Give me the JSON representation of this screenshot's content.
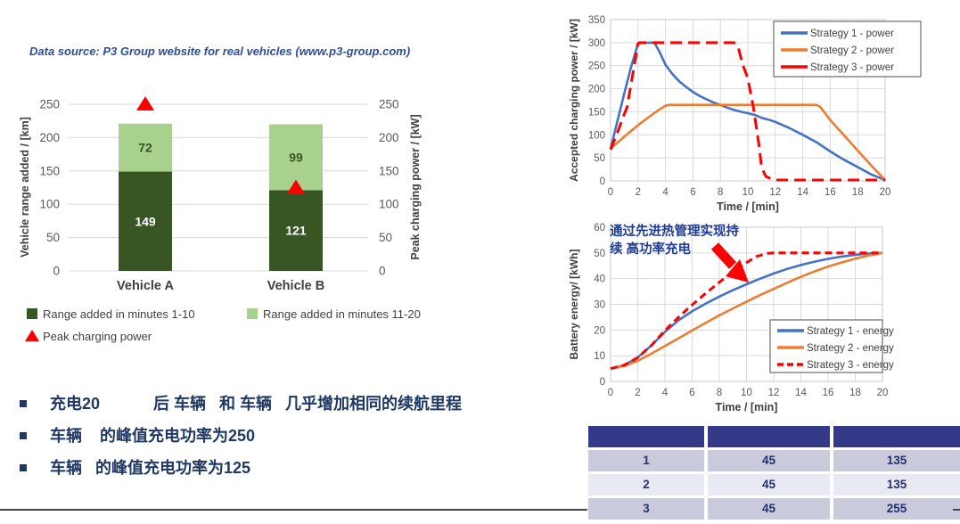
{
  "datasource_note": "Data source: P3 Group website for real vehicles (www.p3-group.com)",
  "bullets": {
    "items": [
      "充电20            后 车辆   和 车辆   几乎增加相同的续航里程",
      "车辆    的峰值充电功率为250",
      "车辆   的峰值充电功率为125"
    ]
  },
  "colors": {
    "dark_green": "#375623",
    "light_green": "#a9d18e",
    "blue_line": "#4472c4",
    "orange_line": "#ed7d31",
    "red_line": "#ff0000",
    "navy_text": "#1f3864",
    "axis_text": "#595959",
    "gridline": "#d9d9d9"
  },
  "chart_data": [
    {
      "type": "bar",
      "stacked": true,
      "categories": [
        "Vehicle A",
        "Vehicle B"
      ],
      "series": [
        {
          "name": "Range added in minutes 1-10",
          "color": "#375623",
          "values": [
            149,
            121
          ],
          "label_color": "#ffffff"
        },
        {
          "name": "Range added in minutes 11-20",
          "color": "#a9d18e",
          "values": [
            72,
            99
          ],
          "label_color": "#375623"
        }
      ],
      "markers": {
        "name": "Peak charging power",
        "color": "#ff0000",
        "values": [
          250,
          125
        ]
      },
      "ylabel_left": "Vehicle range added / [km]",
      "ylabel_right": "Peak charging power / [kW]",
      "ylim": [
        0,
        250
      ],
      "yticks": [
        0,
        50,
        100,
        150,
        200,
        250
      ]
    },
    {
      "type": "line",
      "xlabel": "Time / [min]",
      "ylabel": "Accepted charging power / [kW]",
      "xlim": [
        0,
        20
      ],
      "ylim": [
        0,
        350
      ],
      "xtick_step": 2,
      "ytick_step": 50,
      "legend_position": "top-right",
      "series": [
        {
          "name": "Strategy 1 - power",
          "color": "#4472c4",
          "dash": "solid",
          "x": [
            0,
            0.5,
            1,
            1.5,
            2,
            2.2,
            3.2,
            3.6,
            4,
            4.5,
            5,
            5.5,
            6,
            6.5,
            7,
            7.5,
            8,
            8.5,
            9,
            9.5,
            10,
            10.5,
            11,
            11.5,
            12,
            13,
            14,
            15,
            16,
            16.5,
            17,
            18,
            19,
            20
          ],
          "y": [
            70,
            130,
            190,
            248,
            298,
            300,
            300,
            278,
            252,
            232,
            216,
            204,
            193,
            184,
            177,
            170,
            165,
            159,
            154,
            150,
            147,
            143,
            137,
            133,
            128,
            115,
            100,
            84,
            64,
            55,
            46,
            30,
            14,
            2
          ]
        },
        {
          "name": "Strategy 2 - power",
          "color": "#ed7d31",
          "dash": "solid",
          "x": [
            0,
            1,
            2,
            2.5,
            3,
            3.5,
            4,
            4.3,
            15,
            15.3,
            16,
            17,
            18,
            19,
            20
          ],
          "y": [
            70,
            96,
            121,
            132,
            143,
            154,
            163,
            165,
            165,
            160,
            132,
            99,
            66,
            33,
            2
          ]
        },
        {
          "name": "Strategy 3 - power",
          "color": "#ff0000",
          "dash": "dashed",
          "x": [
            0,
            0.5,
            1,
            1.2,
            2,
            2.1,
            9,
            9.3,
            9.6,
            10,
            10.4,
            10.8,
            11,
            11.3,
            11.7,
            12,
            20
          ],
          "y": [
            68,
            105,
            145,
            160,
            298,
            300,
            300,
            290,
            255,
            222,
            160,
            80,
            30,
            10,
            4,
            2,
            2
          ]
        }
      ]
    },
    {
      "type": "line",
      "xlabel": "Time / [min]",
      "ylabel": "Battery energy/ [kWh]",
      "xlim": [
        0,
        20
      ],
      "ylim": [
        0,
        60
      ],
      "xtick_step": 2,
      "ytick_step": 10,
      "legend_position": "middle-right",
      "annotation_line1": "通过先进热管理实现持",
      "annotation_line2": "续 高功率充电",
      "series": [
        {
          "name": "Strategy 1 - energy",
          "color": "#4472c4",
          "dash": "solid",
          "x": [
            0,
            1,
            2,
            3,
            4,
            5,
            6,
            7,
            8,
            9,
            10,
            11,
            12,
            13,
            14,
            15,
            16,
            17,
            18,
            19,
            20
          ],
          "y": [
            5,
            6.3,
            9.3,
            14,
            19.3,
            23.8,
            27.3,
            30.3,
            33,
            35.5,
            37.8,
            40,
            42,
            43.8,
            45.3,
            46.6,
            47.7,
            48.6,
            49.3,
            49.8,
            50
          ]
        },
        {
          "name": "Strategy 2 - energy",
          "color": "#ed7d31",
          "dash": "solid",
          "x": [
            0,
            1,
            2,
            3,
            4,
            5,
            6,
            7,
            8,
            9,
            10,
            11,
            12,
            13,
            14,
            15,
            16,
            17,
            18,
            19,
            20
          ],
          "y": [
            5,
            6,
            8,
            10.8,
            13.8,
            16.8,
            19.8,
            22.8,
            25.7,
            28.4,
            31,
            33.6,
            36,
            38.4,
            40.7,
            42.8,
            44.7,
            46.3,
            47.8,
            49,
            50
          ]
        },
        {
          "name": "Strategy 3 - energy",
          "color": "#ff0000",
          "dash": "dashed",
          "x": [
            0,
            1,
            2,
            3,
            4,
            5,
            6,
            7,
            8,
            9,
            10,
            10.7,
            11.5,
            12,
            14,
            16,
            18,
            20
          ],
          "y": [
            5,
            6.3,
            9.3,
            14,
            19.8,
            25,
            29.8,
            34.3,
            38.6,
            42.6,
            46.2,
            48.6,
            49.8,
            50,
            50,
            50,
            50,
            50
          ]
        }
      ]
    }
  ],
  "table": {
    "headers": [
      "",
      "",
      ""
    ],
    "rows": [
      [
        "1",
        "45",
        "135"
      ],
      [
        "2",
        "45",
        "135"
      ],
      [
        "3",
        "45",
        "255"
      ]
    ],
    "header_color": "#343a87",
    "row_colors": [
      "#c9cbdc",
      "#e8e9f2",
      "#c9cbdc"
    ]
  }
}
